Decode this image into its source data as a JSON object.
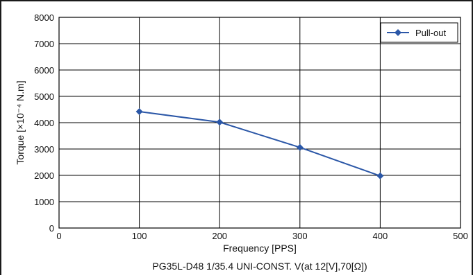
{
  "chart_data": {
    "type": "line",
    "caption": "PG35L-D48 1/35.4 UNI-CONST. V(at 12[V],70[Ω])",
    "xlabel": "Frequency [PPS]",
    "ylabel": "Torque [×10⁻⁴ N.m]",
    "xlim": [
      0,
      500
    ],
    "ylim": [
      0,
      8000
    ],
    "x_ticks": [
      "0",
      "100",
      "200",
      "300",
      "400",
      "500"
    ],
    "y_ticks": [
      "0",
      "1000",
      "2000",
      "3000",
      "4000",
      "5000",
      "6000",
      "7000",
      "8000"
    ],
    "x_tick_values": [
      0,
      100,
      200,
      300,
      400,
      500
    ],
    "y_tick_values": [
      0,
      1000,
      2000,
      3000,
      4000,
      5000,
      6000,
      7000,
      8000
    ],
    "grid": true,
    "legend_position": "top-right",
    "series": [
      {
        "name": "Pull-out",
        "color": "#2b57a7",
        "marker": "diamond",
        "x": [
          100,
          200,
          300,
          400
        ],
        "y": [
          4420,
          4020,
          3060,
          1980
        ]
      }
    ]
  }
}
